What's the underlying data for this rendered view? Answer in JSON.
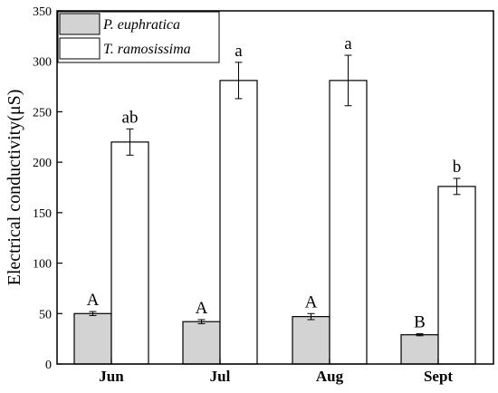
{
  "chart_data": {
    "type": "bar",
    "categories": [
      "Jun",
      "Jul",
      "Aug",
      "Sept"
    ],
    "series": [
      {
        "name": "P. euphratica",
        "color": "#d3d3d3",
        "values": [
          50,
          42,
          47,
          29
        ],
        "errors": [
          2,
          2,
          3,
          1
        ],
        "labels": [
          "A",
          "A",
          "A",
          "B"
        ]
      },
      {
        "name": "T. ramosissima",
        "color": "#ffffff",
        "values": [
          220,
          281,
          281,
          176
        ],
        "errors": [
          13,
          18,
          25,
          8
        ],
        "labels": [
          "ab",
          "a",
          "a",
          "b"
        ]
      }
    ],
    "xlabel": "",
    "ylabel": "Electrical conductivity(μS)",
    "ylim": [
      0,
      350
    ],
    "yticks": [
      0,
      50,
      100,
      150,
      200,
      250,
      300,
      350
    ],
    "grid": false,
    "legend_position": "top-left"
  }
}
